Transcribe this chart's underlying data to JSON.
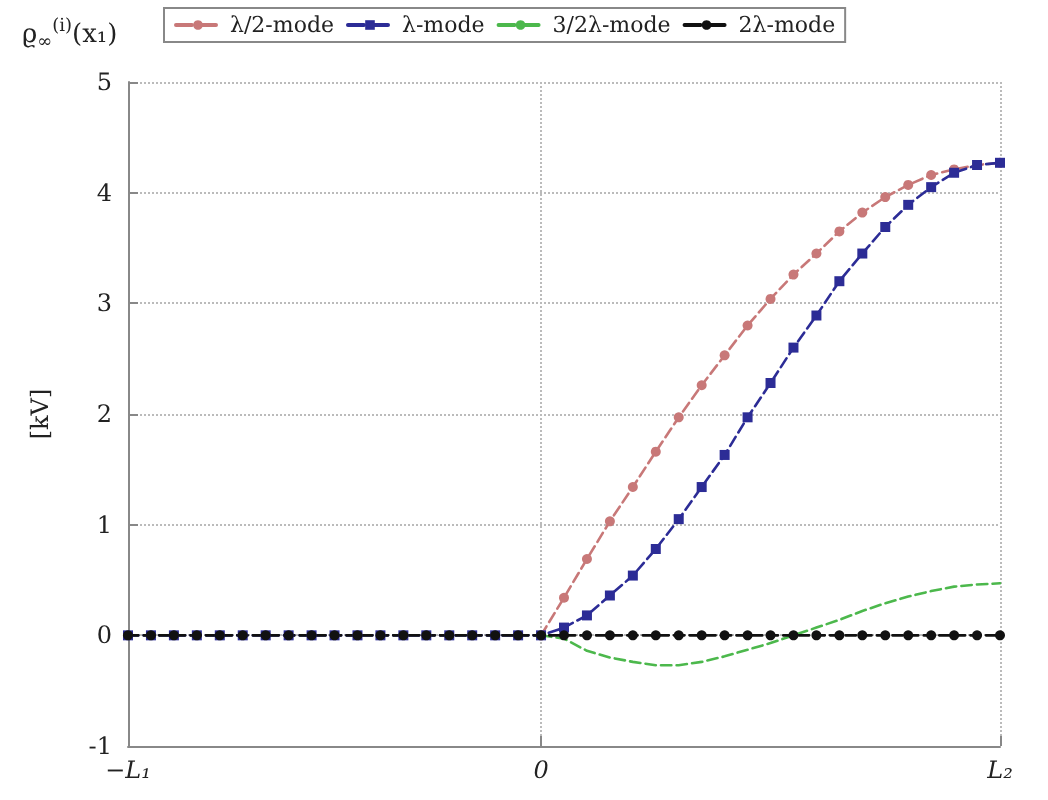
{
  "chart_data": {
    "type": "line",
    "title": "ϱ$_{∞}$$^{(i)}$(x₁)",
    "ylabel": "[kV]",
    "categories": [
      "−L₁",
      null,
      null,
      null,
      null,
      null,
      null,
      null,
      null,
      null,
      null,
      null,
      null,
      null,
      null,
      null,
      null,
      null,
      "0",
      null,
      null,
      null,
      null,
      null,
      null,
      null,
      null,
      null,
      null,
      null,
      null,
      null,
      null,
      null,
      null,
      null,
      null,
      null,
      "L₂"
    ],
    "series": [
      {
        "name": "λ/2-mode",
        "color": "#c87878",
        "marker": "circle",
        "line_style": "dashed",
        "values": [
          null,
          null,
          null,
          null,
          null,
          null,
          null,
          null,
          null,
          null,
          null,
          null,
          null,
          null,
          null,
          null,
          null,
          null,
          0,
          0.34,
          0.69,
          1.03,
          1.34,
          1.66,
          1.97,
          2.26,
          2.53,
          2.8,
          3.04,
          3.26,
          3.45,
          3.65,
          3.82,
          3.96,
          4.07,
          4.16,
          4.21,
          4.25,
          4.27
        ]
      },
      {
        "name": "λ-mode",
        "color": "#2c2c96",
        "marker": "square",
        "line_style": "dashed",
        "values": [
          0,
          0,
          0,
          0,
          0,
          0,
          0,
          0,
          0,
          0,
          0,
          0,
          0,
          0,
          0,
          0,
          0,
          0,
          0,
          0.07,
          0.18,
          0.36,
          0.54,
          0.78,
          1.05,
          1.34,
          1.63,
          1.97,
          2.28,
          2.6,
          2.89,
          3.2,
          3.45,
          3.69,
          3.89,
          4.05,
          4.18,
          4.25,
          4.27
        ]
      },
      {
        "name": "3/2λ-mode",
        "color": "#4cb84c",
        "marker": "none",
        "line_style": "dashed",
        "values": [
          null,
          null,
          null,
          null,
          null,
          null,
          null,
          null,
          null,
          null,
          null,
          null,
          null,
          null,
          null,
          null,
          null,
          null,
          0,
          -0.03,
          -0.14,
          -0.2,
          -0.24,
          -0.27,
          -0.27,
          -0.24,
          -0.19,
          -0.13,
          -0.07,
          0,
          0.07,
          0.14,
          0.22,
          0.29,
          0.35,
          0.4,
          0.44,
          0.46,
          0.47
        ]
      },
      {
        "name": "2λ-mode",
        "color": "#111111",
        "marker": "circle",
        "line_style": "dashed",
        "values": [
          0,
          0,
          0,
          0,
          0,
          0,
          0,
          0,
          0,
          0,
          0,
          0,
          0,
          0,
          0,
          0,
          0,
          0,
          0,
          0,
          0,
          0,
          0,
          0,
          0,
          0,
          0,
          0,
          0,
          0,
          0,
          0,
          0,
          0,
          0,
          0,
          0,
          0,
          0
        ]
      }
    ],
    "ylim": [
      -1,
      5
    ],
    "yticks": [
      -1,
      0,
      1,
      2,
      3,
      4,
      5
    ],
    "grid": true,
    "legend": "top"
  }
}
